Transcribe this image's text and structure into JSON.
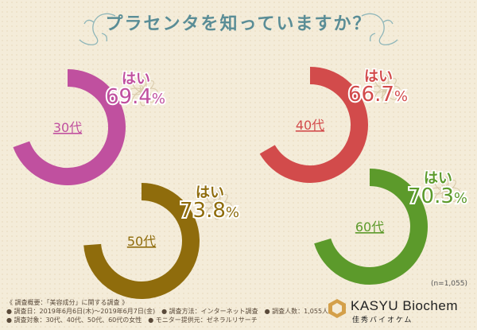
{
  "title": "プラセンタを知っていますか？",
  "yes_label": "はい",
  "sample_note": "(n=1,055)",
  "survey": {
    "heading": "調査概要：「美容成分」に関する調査",
    "date": "調査日：2019年6月6日(木)～2019年6月7日(金)",
    "method": "調査方法：インターネット調査",
    "count": "調査人数：1,055人",
    "target": "調査対象：30代、40代、50代、60代の女性",
    "provider": "モニター提供元：ゼネラルリサーチ"
  },
  "logo": {
    "name": "KASYU Biochem",
    "sub": "佳秀バイオケム"
  },
  "colors": {
    "30s": "#c0509f",
    "40s": "#d24b4b",
    "50s": "#8f6c0c",
    "60s": "#5c9a2b",
    "title": "#5a8d96"
  },
  "chart_data": [
    {
      "type": "pie",
      "title": "30代",
      "label": "はい",
      "value": 69.4,
      "unit": "%",
      "color": "#c0509f"
    },
    {
      "type": "pie",
      "title": "40代",
      "label": "はい",
      "value": 66.7,
      "unit": "%",
      "color": "#d24b4b"
    },
    {
      "type": "pie",
      "title": "50代",
      "label": "はい",
      "value": 73.8,
      "unit": "%",
      "color": "#8f6c0c"
    },
    {
      "type": "pie",
      "title": "60代",
      "label": "はい",
      "value": 70.3,
      "unit": "%",
      "color": "#5c9a2b"
    }
  ]
}
